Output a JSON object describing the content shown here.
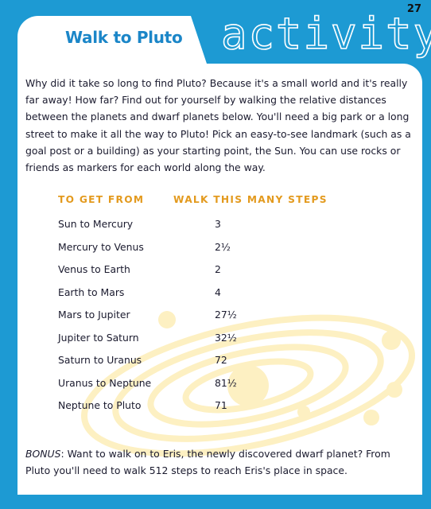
{
  "page_number": "27",
  "header": {
    "title": "Walk to Pluto",
    "activity_label": "activity"
  },
  "intro_text": "Why did it take so long to find Pluto? Because it's a small world and it's really far away! How far? Find out for yourself by walking the relative distances between the planets and dwarf planets below. You'll need a big park or a long street to make it all the way to Pluto! Pick an easy-to-see landmark (such as a goal post or a building) as your starting point, the Sun. You can use rocks or friends as markers for each world along the way.",
  "table": {
    "headers": {
      "from": "TO GET FROM",
      "steps": "WALK THIS MANY STEPS"
    },
    "rows": [
      {
        "from": "Sun to Mercury",
        "steps": "3"
      },
      {
        "from": "Mercury to Venus",
        "steps": "2½"
      },
      {
        "from": "Venus to Earth",
        "steps": "2"
      },
      {
        "from": "Earth to Mars",
        "steps": "4"
      },
      {
        "from": "Mars to Jupiter",
        "steps": "27½"
      },
      {
        "from": "Jupiter to Saturn",
        "steps": "32½"
      },
      {
        "from": "Saturn to Uranus",
        "steps": "72"
      },
      {
        "from": "Uranus to Neptune",
        "steps": "81½"
      },
      {
        "from": "Neptune to Pluto",
        "steps": "71"
      }
    ]
  },
  "bonus": {
    "label": "BONUS",
    "text": ": Want to walk on to Eris, the newly discovered dwarf planet? From Pluto you'll need to walk 512 steps to reach Eris's place in space."
  },
  "colors": {
    "background": "#1d9ad3",
    "title": "#1b86c8",
    "table_header": "#e39a1e",
    "orbit_decoration": "#fdf0c2"
  }
}
